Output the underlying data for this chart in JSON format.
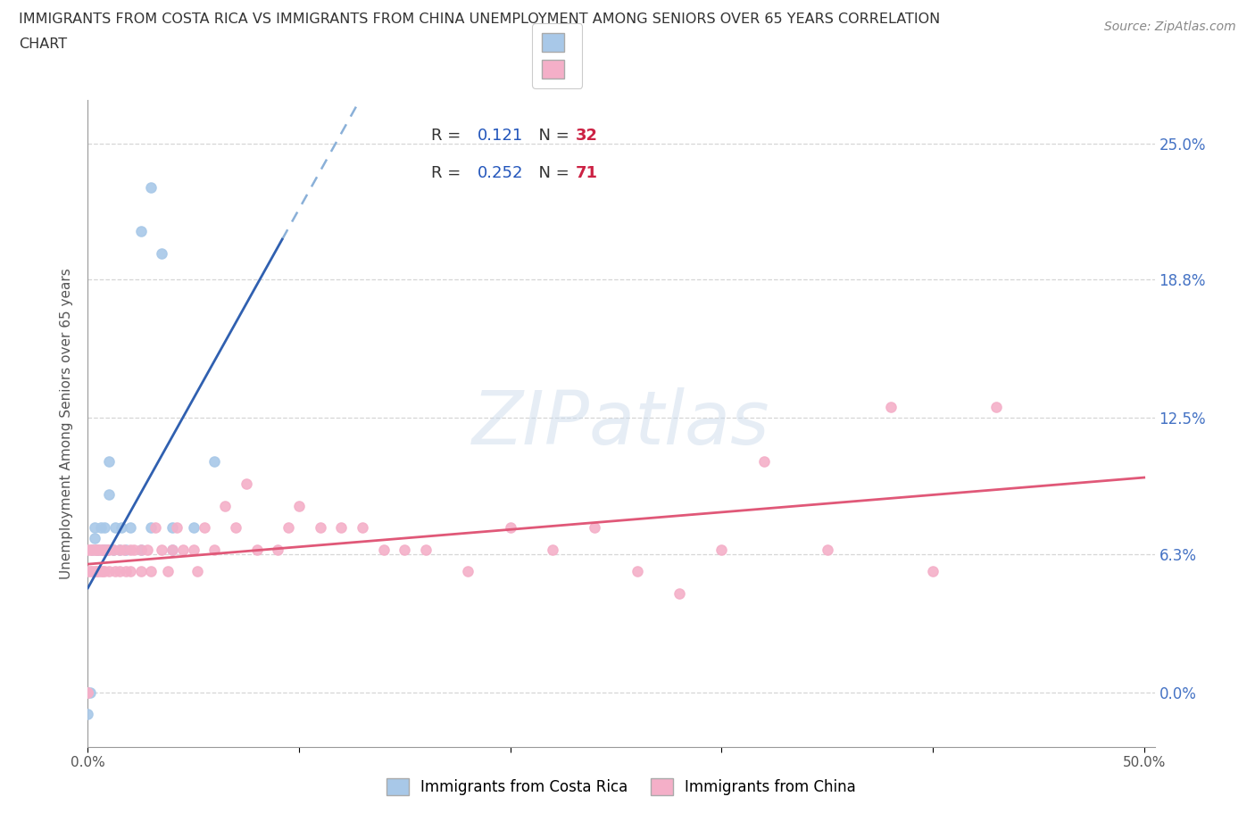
{
  "title_line1": "IMMIGRANTS FROM COSTA RICA VS IMMIGRANTS FROM CHINA UNEMPLOYMENT AMONG SENIORS OVER 65 YEARS CORRELATION",
  "title_line2": "CHART",
  "source_text": "Source: ZipAtlas.com",
  "ylabel": "Unemployment Among Seniors over 65 years",
  "watermark_text": "ZIPatlas",
  "xlim": [
    0.0,
    0.505
  ],
  "ylim": [
    -0.025,
    0.27
  ],
  "yticks": [
    0.0,
    0.063,
    0.125,
    0.188,
    0.25
  ],
  "ytick_labels": [
    "0.0%",
    "6.3%",
    "12.5%",
    "18.8%",
    "25.0%"
  ],
  "xticks": [
    0.0,
    0.1,
    0.2,
    0.3,
    0.4,
    0.5
  ],
  "xtick_labels": [
    "0.0%",
    "",
    "",
    "",
    "",
    "50.0%"
  ],
  "costa_rica_color": "#a8c8e8",
  "china_color": "#f4afc8",
  "costa_rica_line_color": "#3060b0",
  "china_line_color": "#e05878",
  "dashed_line_color": "#8ab0d8",
  "right_label_color": "#4472c4",
  "legend_label_color": "#333333",
  "legend_value_color": "#2255bb",
  "legend_N_color": "#cc2244",
  "background_color": "#ffffff",
  "grid_color": "#cccccc",
  "costa_rica_R": 0.121,
  "costa_rica_N": 32,
  "china_R": 0.252,
  "china_N": 71,
  "cr_x": [
    0.0,
    0.0,
    0.0,
    0.0,
    0.001,
    0.002,
    0.003,
    0.003,
    0.004,
    0.005,
    0.006,
    0.007,
    0.008,
    0.008,
    0.009,
    0.01,
    0.01,
    0.012,
    0.013,
    0.015,
    0.016,
    0.018,
    0.02,
    0.025,
    0.03,
    0.04,
    0.05,
    0.06,
    0.025,
    0.03,
    0.035,
    0.04
  ],
  "cr_y": [
    0.0,
    0.0,
    0.0,
    -0.01,
    0.0,
    0.065,
    0.07,
    0.075,
    0.065,
    0.065,
    0.075,
    0.065,
    0.075,
    0.065,
    0.065,
    0.09,
    0.105,
    0.065,
    0.075,
    0.065,
    0.075,
    0.065,
    0.075,
    0.065,
    0.075,
    0.075,
    0.075,
    0.105,
    0.21,
    0.23,
    0.2,
    0.065
  ],
  "ch_x": [
    0.0,
    0.0,
    0.0,
    0.0,
    0.001,
    0.001,
    0.002,
    0.002,
    0.003,
    0.003,
    0.004,
    0.004,
    0.005,
    0.005,
    0.006,
    0.006,
    0.007,
    0.007,
    0.008,
    0.008,
    0.009,
    0.01,
    0.01,
    0.012,
    0.013,
    0.015,
    0.015,
    0.017,
    0.018,
    0.02,
    0.02,
    0.022,
    0.025,
    0.025,
    0.028,
    0.03,
    0.032,
    0.035,
    0.038,
    0.04,
    0.042,
    0.045,
    0.05,
    0.052,
    0.055,
    0.06,
    0.065,
    0.07,
    0.075,
    0.08,
    0.09,
    0.095,
    0.1,
    0.11,
    0.12,
    0.13,
    0.14,
    0.15,
    0.16,
    0.18,
    0.2,
    0.22,
    0.24,
    0.26,
    0.28,
    0.3,
    0.32,
    0.35,
    0.38,
    0.4,
    0.43
  ],
  "ch_y": [
    0.0,
    0.0,
    0.055,
    0.065,
    0.055,
    0.065,
    0.055,
    0.065,
    0.055,
    0.065,
    0.055,
    0.065,
    0.055,
    0.065,
    0.055,
    0.065,
    0.055,
    0.065,
    0.055,
    0.065,
    0.065,
    0.055,
    0.065,
    0.065,
    0.055,
    0.055,
    0.065,
    0.065,
    0.055,
    0.065,
    0.055,
    0.065,
    0.055,
    0.065,
    0.065,
    0.055,
    0.075,
    0.065,
    0.055,
    0.065,
    0.075,
    0.065,
    0.065,
    0.055,
    0.075,
    0.065,
    0.085,
    0.075,
    0.095,
    0.065,
    0.065,
    0.075,
    0.085,
    0.075,
    0.075,
    0.075,
    0.065,
    0.065,
    0.065,
    0.055,
    0.075,
    0.065,
    0.075,
    0.055,
    0.045,
    0.065,
    0.105,
    0.065,
    0.13,
    0.055,
    0.13
  ]
}
